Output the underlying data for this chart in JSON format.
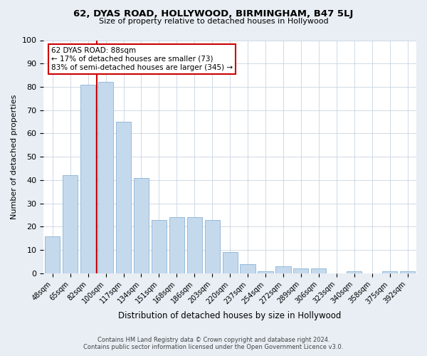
{
  "title": "62, DYAS ROAD, HOLLYWOOD, BIRMINGHAM, B47 5LJ",
  "subtitle": "Size of property relative to detached houses in Hollywood",
  "xlabel": "Distribution of detached houses by size in Hollywood",
  "ylabel": "Number of detached properties",
  "bar_labels": [
    "48sqm",
    "65sqm",
    "82sqm",
    "100sqm",
    "117sqm",
    "134sqm",
    "151sqm",
    "168sqm",
    "186sqm",
    "203sqm",
    "220sqm",
    "237sqm",
    "254sqm",
    "272sqm",
    "289sqm",
    "306sqm",
    "323sqm",
    "340sqm",
    "358sqm",
    "375sqm",
    "392sqm"
  ],
  "bar_heights": [
    16,
    42,
    81,
    82,
    65,
    41,
    23,
    24,
    24,
    23,
    9,
    4,
    1,
    3,
    2,
    2,
    0,
    1,
    0,
    1,
    1
  ],
  "bar_color": "#c5d9ed",
  "bar_edge_color": "#8ab4d4",
  "ylim": [
    0,
    100
  ],
  "yticks": [
    0,
    10,
    20,
    30,
    40,
    50,
    60,
    70,
    80,
    90,
    100
  ],
  "vline_x": 2.5,
  "vline_color": "#cc0000",
  "annotation_title": "62 DYAS ROAD: 88sqm",
  "annotation_line1": "← 17% of detached houses are smaller (73)",
  "annotation_line2": "83% of semi-detached houses are larger (345) →",
  "annotation_box_color": "#cc0000",
  "footer_line1": "Contains HM Land Registry data © Crown copyright and database right 2024.",
  "footer_line2": "Contains public sector information licensed under the Open Government Licence v3.0.",
  "bg_color": "#e8eef4",
  "plot_bg_color": "#ffffff",
  "grid_color": "#c8d4e0"
}
